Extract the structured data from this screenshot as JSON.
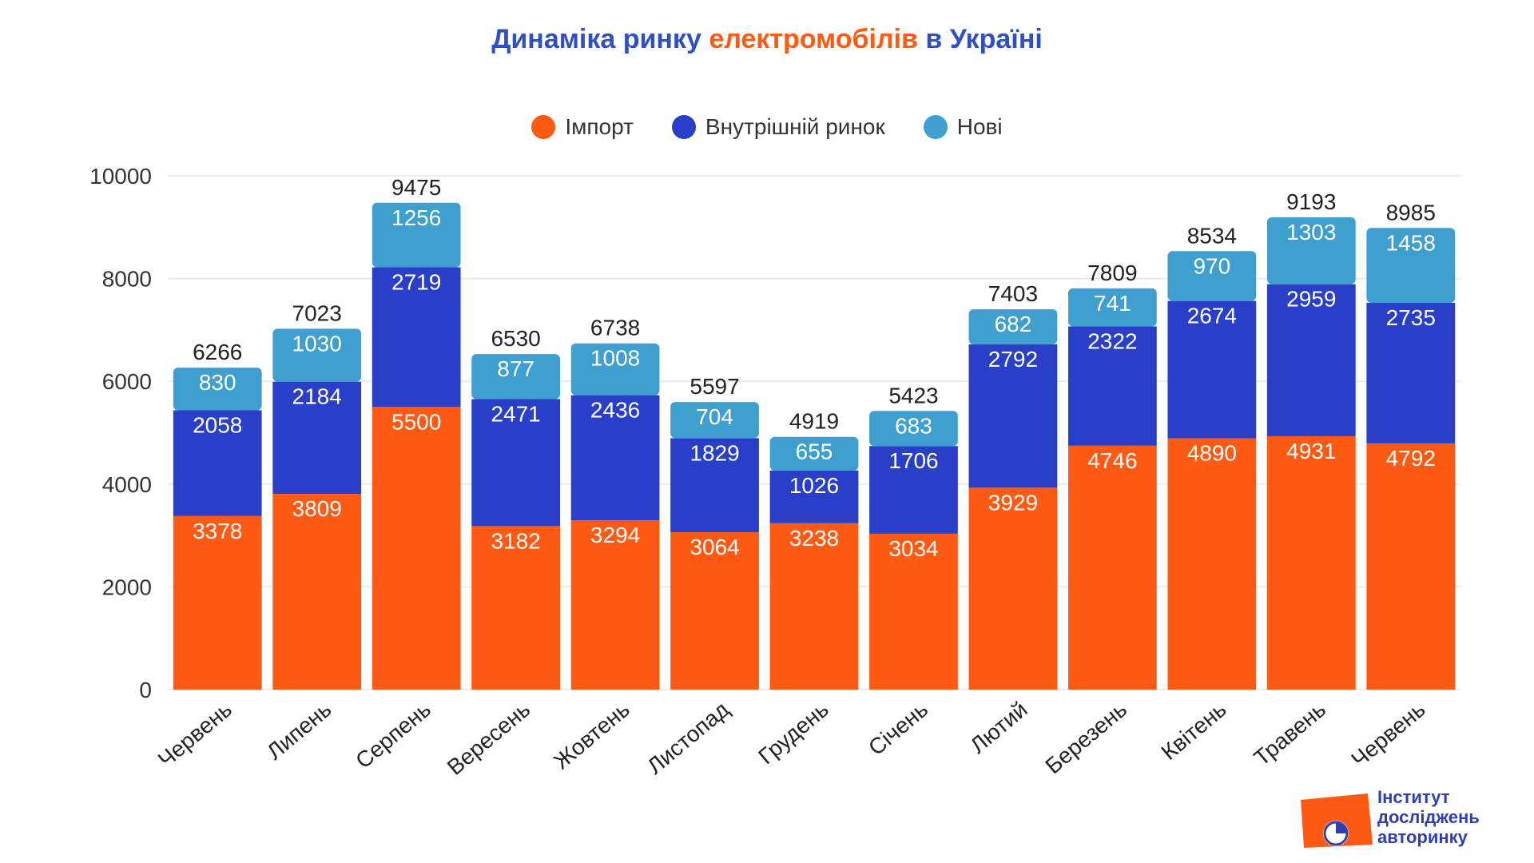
{
  "title": {
    "part1": "Динаміка ринку ",
    "part2": "електромобілів",
    "part3": " в Україні"
  },
  "colors": {
    "import": "#ff5a14",
    "domestic": "#2a3fc8",
    "new": "#3f9fcf",
    "grid": "#e6e6e6",
    "title_blue": "#2f4fc4",
    "title_orange": "#ff5a14"
  },
  "logo": {
    "line1": "Інститут",
    "line2": "досліджень",
    "line3": "авторинку",
    "icon": "pie-chart-logo-icon"
  },
  "chart_data": {
    "type": "bar",
    "stacked": true,
    "title": "Динаміка ринку електромобілів в Україні",
    "xlabel": "",
    "ylabel": "",
    "ylim": [
      0,
      10000
    ],
    "yticks": [
      0,
      2000,
      4000,
      6000,
      8000,
      10000
    ],
    "grid": true,
    "legend_position": "top-center",
    "categories": [
      "Червень",
      "Липень",
      "Серпень",
      "Вересень",
      "Жовтень",
      "Листопад",
      "Грудень",
      "Січень",
      "Лютий",
      "Березень",
      "Квітень",
      "Травень",
      "Червень"
    ],
    "series": [
      {
        "name": "Імпорт",
        "color": "#ff5a14",
        "values": [
          3378,
          3809,
          5500,
          3182,
          3294,
          3064,
          3238,
          3034,
          3929,
          4746,
          4890,
          4931,
          4792
        ]
      },
      {
        "name": "Внутрішній ринок",
        "color": "#2a3fc8",
        "values": [
          2058,
          2184,
          2719,
          2471,
          2436,
          1829,
          1026,
          1706,
          2792,
          2322,
          2674,
          2959,
          2735
        ]
      },
      {
        "name": "Нові",
        "color": "#3f9fcf",
        "values": [
          830,
          1030,
          1256,
          877,
          1008,
          704,
          655,
          683,
          682,
          741,
          970,
          1303,
          1458
        ]
      }
    ],
    "totals": [
      6266,
      7023,
      9475,
      6530,
      6738,
      5597,
      4919,
      5423,
      7403,
      7809,
      8534,
      9193,
      8985
    ]
  }
}
